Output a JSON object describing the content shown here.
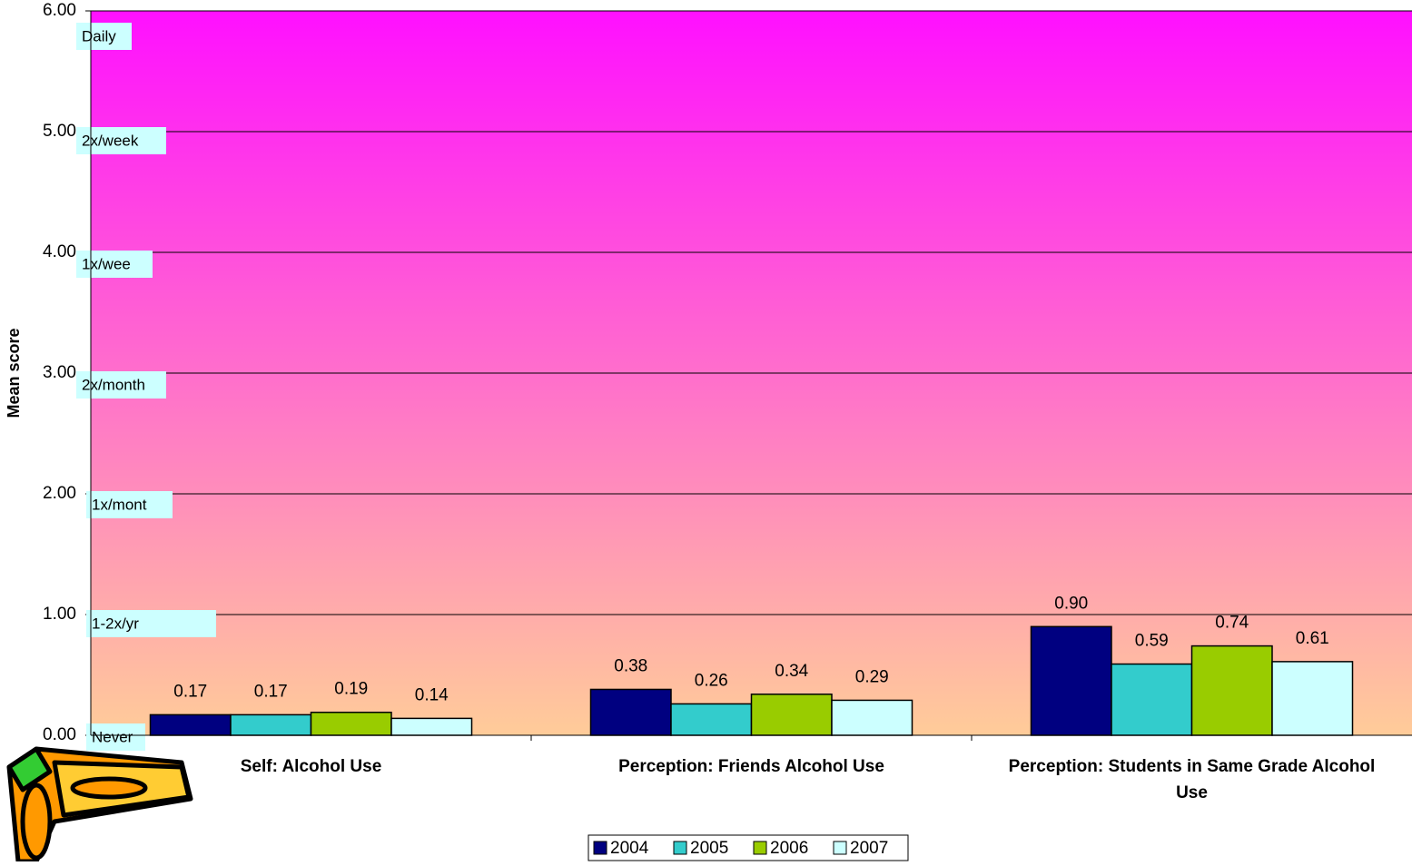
{
  "chart_data": {
    "type": "bar",
    "y_label": "Mean score",
    "categories": [
      "Self: Alcohol Use",
      "Perception: Friends Alcohol Use",
      "Perception: Students in Same Grade Alcohol Use"
    ],
    "series": [
      {
        "name": "2004",
        "color": "#000080",
        "values": [
          0.17,
          0.38,
          0.9
        ],
        "value_labels": [
          "0.17",
          "0.38",
          "0.90"
        ]
      },
      {
        "name": "2005",
        "color": "#33cccc",
        "values": [
          0.17,
          0.26,
          0.59
        ],
        "value_labels": [
          "0.17",
          "0.26",
          "0.59"
        ]
      },
      {
        "name": "2006",
        "color": "#99cc00",
        "values": [
          0.19,
          0.34,
          0.74
        ],
        "value_labels": [
          "0.19",
          "0.34",
          "0.74"
        ]
      },
      {
        "name": "2007",
        "color": "#ccffff",
        "values": [
          0.14,
          0.29,
          0.61
        ],
        "value_labels": [
          "0.14",
          "0.29",
          "0.61"
        ]
      }
    ],
    "ylim": [
      0,
      6
    ],
    "yticks": [
      {
        "value": 0,
        "label": "0.00"
      },
      {
        "value": 1,
        "label": "1.00"
      },
      {
        "value": 2,
        "label": "2.00"
      },
      {
        "value": 3,
        "label": "3.00"
      },
      {
        "value": 4,
        "label": "4.00"
      },
      {
        "value": 5,
        "label": "5.00"
      },
      {
        "value": 6,
        "label": "6.00"
      }
    ],
    "grid": true,
    "legend": "bottom",
    "annotations": [
      "Never",
      "1-2x/yr",
      "1x/mont",
      "2x/month",
      "1x/wee",
      "2x/week",
      "Daily"
    ]
  }
}
